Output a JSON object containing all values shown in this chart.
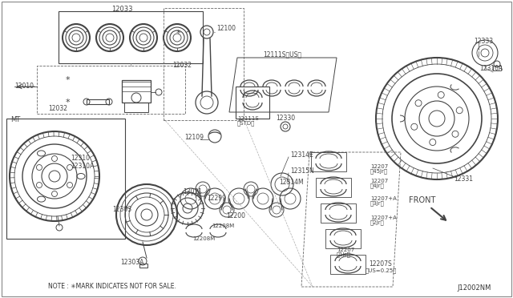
{
  "bg_color": "#ffffff",
  "c": "#444444",
  "figsize": [
    6.4,
    3.72
  ],
  "dpi": 100,
  "xlim": [
    0,
    640
  ],
  "ylim": [
    0,
    372
  ]
}
